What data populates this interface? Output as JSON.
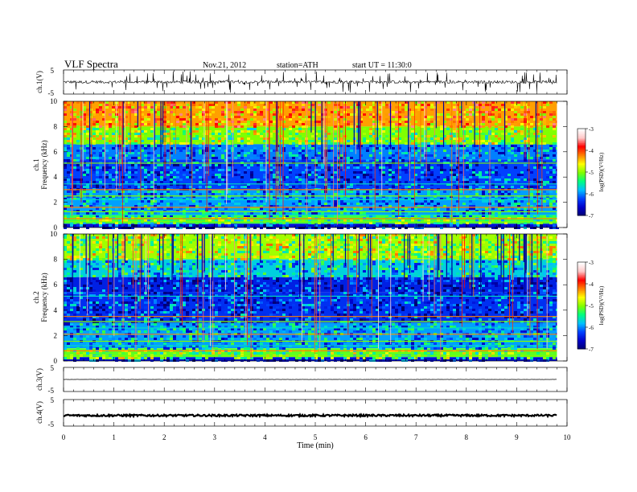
{
  "header": {
    "title": "VLF  Spectra",
    "date": "Nov.21, 2012",
    "station": "station=ATH",
    "start": "start  UT  =   11:30:0"
  },
  "chart_data": [
    {
      "type": "line",
      "panel": "ch1-waveform",
      "ylabel": "ch.1(V)",
      "yticks": [
        "5",
        "-5"
      ],
      "ylim": [
        -5,
        5
      ],
      "xlim": [
        0,
        10
      ],
      "data_end_min": 9.8,
      "baseline": 0,
      "noise_amplitude": 0.6,
      "spike_amplitude": 4.5
    },
    {
      "type": "heatmap",
      "panel": "ch1-spectrogram",
      "ylabel": [
        "ch.1",
        "Frequency  (kHz)"
      ],
      "yticks": [
        "0",
        "2",
        "4",
        "6",
        "8",
        "10"
      ],
      "ylim": [
        0,
        10
      ],
      "xlim": [
        0,
        10
      ],
      "data_end_min": 9.8,
      "colorbar": {
        "label": "log(PSD)(V²/Hz)",
        "ticks": [
          "-3",
          "-4",
          "-5",
          "-6",
          "-7"
        ],
        "range": [
          -7,
          -3
        ],
        "colormap": [
          "#000070",
          "#0000c8",
          "#0040ff",
          "#00c0ff",
          "#00ff80",
          "#80ff00",
          "#ffff00",
          "#ff8000",
          "#ff0000",
          "#ffc8c8",
          "#ffffff"
        ]
      },
      "bands": [
        {
          "f_low": 8.0,
          "f_high": 10.0,
          "level": -4.3
        },
        {
          "f_low": 6.6,
          "f_high": 8.0,
          "level": -5.0
        },
        {
          "f_low": 5.4,
          "f_high": 6.6,
          "level": -6.0
        },
        {
          "f_low": 3.0,
          "f_high": 5.4,
          "level": -6.2
        },
        {
          "f_low": 1.0,
          "f_high": 3.0,
          "level": -5.9
        },
        {
          "f_low": 0.3,
          "f_high": 1.0,
          "level": -5.2
        },
        {
          "f_low": 0.0,
          "f_high": 0.3,
          "level": -6.5
        }
      ],
      "lines_khz": [
        0.45,
        0.7,
        1.0,
        1.25,
        1.6,
        2.2,
        2.5,
        3.0,
        3.45,
        5.1
      ]
    },
    {
      "type": "heatmap",
      "panel": "ch2-spectrogram",
      "ylabel": [
        "ch.2",
        "Frequency  (kHz)"
      ],
      "yticks": [
        "0",
        "2",
        "4",
        "6",
        "8",
        "10"
      ],
      "ylim": [
        0,
        10
      ],
      "xlim": [
        0,
        10
      ],
      "data_end_min": 9.8,
      "colorbar": {
        "label": "log(PSD)(V²/Hz)",
        "ticks": [
          "-3",
          "-4",
          "-5",
          "-6",
          "-7"
        ],
        "range": [
          -7,
          -3
        ]
      },
      "bands": [
        {
          "f_low": 8.0,
          "f_high": 10.0,
          "level": -4.9
        },
        {
          "f_low": 6.6,
          "f_high": 8.0,
          "level": -5.7
        },
        {
          "f_low": 5.4,
          "f_high": 6.6,
          "level": -6.4
        },
        {
          "f_low": 3.0,
          "f_high": 5.4,
          "level": -6.3
        },
        {
          "f_low": 1.0,
          "f_high": 3.0,
          "level": -5.9
        },
        {
          "f_low": 0.3,
          "f_high": 1.0,
          "level": -5.1
        },
        {
          "f_low": 0.0,
          "f_high": 0.3,
          "level": -6.5
        }
      ],
      "lines_khz": [
        0.4,
        0.8,
        1.2,
        1.55,
        2.1,
        2.6,
        3.1,
        3.5,
        5.1
      ]
    },
    {
      "type": "line",
      "panel": "ch3-waveform",
      "ylabel": "ch.3(V)",
      "yticks": [
        "5",
        "-5"
      ],
      "ylim": [
        -5,
        5
      ],
      "xlim": [
        0,
        10
      ],
      "data_end_min": 9.8,
      "baseline": 0,
      "noise_amplitude": 0.05
    },
    {
      "type": "line",
      "panel": "ch4-waveform",
      "ylabel": "ch.4(V)",
      "yticks": [
        "5",
        "-5"
      ],
      "ylim": [
        -5,
        5
      ],
      "xlim": [
        0,
        10
      ],
      "data_end_min": 9.8,
      "baseline": -1,
      "noise_amplitude": 0.35,
      "xlabel": "Time  (min)",
      "xticks": [
        "0",
        "1",
        "2",
        "3",
        "4",
        "5",
        "6",
        "7",
        "8",
        "9",
        "10"
      ]
    }
  ]
}
